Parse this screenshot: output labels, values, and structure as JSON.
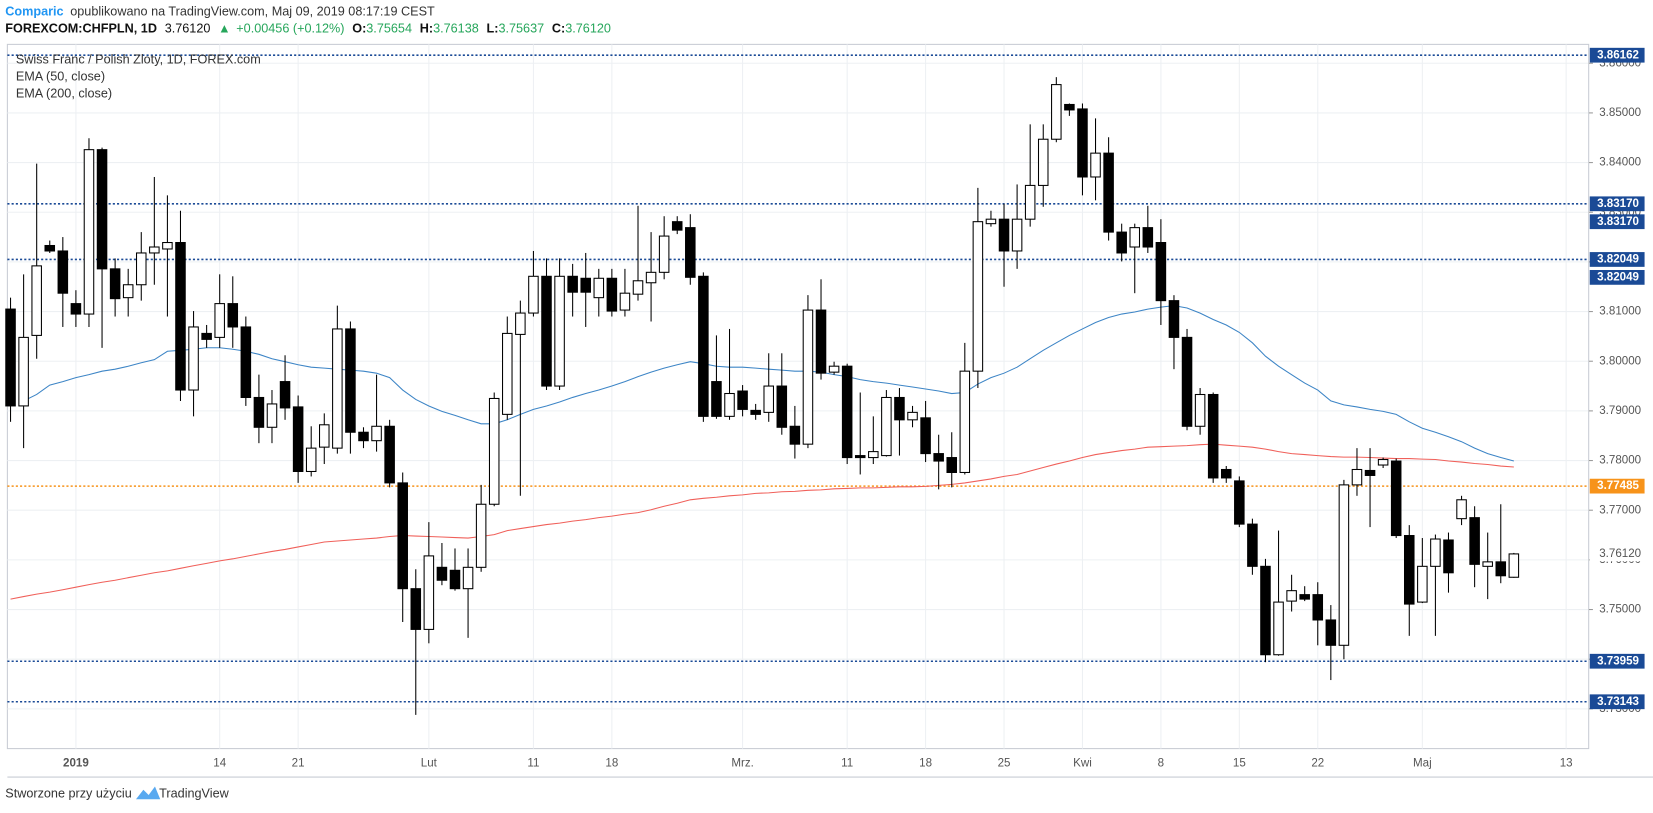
{
  "header": {
    "author": "Comparic",
    "published": "opublikowano na TradingView.com, Maj 09, 2019 08:17:19 CEST",
    "symbol": "FOREXCOM:CHFPLN, 1D",
    "price": "3.76120",
    "arrow": "▲",
    "change": "+0.00456 (+0.12%)",
    "ohlc": [
      {
        "key": "O:",
        "value": "3.75654"
      },
      {
        "key": "H:",
        "value": "3.76138"
      },
      {
        "key": "L:",
        "value": "3.75637"
      },
      {
        "key": "C:",
        "value": "3.76120"
      }
    ]
  },
  "chart_data": {
    "type": "candlestick",
    "title": "Swiss Franc / Polish Zloty, 1D, FOREX.com",
    "categories": [
      null,
      null,
      null,
      null,
      null,
      "2019",
      null,
      null,
      null,
      null,
      null,
      null,
      null,
      null,
      null,
      null,
      "14",
      null,
      null,
      null,
      null,
      null,
      "21",
      null,
      null,
      null,
      null,
      null,
      null,
      null,
      null,
      null,
      "Lut",
      null,
      null,
      null,
      null,
      null,
      null,
      null,
      "11",
      null,
      null,
      null,
      null,
      null,
      "18",
      null,
      null,
      null,
      null,
      null,
      null,
      null,
      null,
      null,
      "Mrz.",
      null,
      null,
      null,
      null,
      null,
      null,
      null,
      "11",
      null,
      null,
      null,
      null,
      null,
      "18",
      null,
      null,
      null,
      null,
      null,
      "25",
      null,
      null,
      null,
      null,
      null,
      "Kwi",
      null,
      null,
      null,
      null,
      null,
      "8",
      null,
      null,
      null,
      null,
      null,
      "15",
      null,
      null,
      null,
      null,
      null,
      "22",
      null,
      null,
      null,
      null,
      null,
      null,
      null,
      "Maj",
      null,
      null,
      null,
      null,
      null,
      null,
      null,
      null,
      null,
      null,
      "13"
    ],
    "open": [
      3.8105,
      3.791,
      3.8052,
      3.8233,
      3.8222,
      3.8116,
      3.8095,
      3.8426,
      3.8186,
      3.8128,
      3.8154,
      3.8218,
      3.8226,
      3.8239,
      3.7942,
      3.8056,
      3.8048,
      3.8116,
      3.8069,
      3.7927,
      3.7867,
      3.7959,
      3.7908,
      3.7778,
      3.7827,
      3.7825,
      3.8065,
      3.7857,
      3.784,
      3.7869,
      3.7755,
      3.7542,
      3.746,
      3.7585,
      3.7579,
      3.7542,
      3.7585,
      3.7712,
      3.7893,
      3.8054,
      3.8097,
      3.8171,
      3.795,
      3.8171,
      3.8167,
      3.8128,
      3.8167,
      3.8103,
      3.8135,
      3.8158,
      3.8179,
      3.8281,
      3.8269,
      3.8171,
      3.7959,
      3.7889,
      3.794,
      3.7901,
      3.7897,
      3.795,
      3.7869,
      3.7833,
      3.8103,
      3.7978,
      3.799,
      3.781,
      3.7806,
      3.781,
      3.7927,
      3.7882,
      3.7886,
      3.7814,
      3.7806,
      3.7776,
      3.798,
      3.8277,
      3.8286,
      3.8222,
      3.8286,
      3.8354,
      3.8447,
      3.8517,
      3.8508,
      3.8371,
      3.8419,
      3.826,
      3.823,
      3.8269,
      3.8239,
      3.8122,
      3.8048,
      3.7869,
      3.7933,
      3.7782,
      3.7759,
      3.7672,
      3.7587,
      3.7409,
      3.7517,
      3.753,
      3.753,
      3.7479,
      3.7428,
      3.7751,
      3.778,
      3.7791,
      3.7799,
      3.7649,
      3.7515,
      3.7587,
      3.764,
      3.7683,
      3.7685,
      3.7587,
      3.7596,
      3.7565,
      null,
      null,
      null,
      null
    ],
    "high": [
      3.8128,
      3.8175,
      3.8398,
      3.8243,
      3.825,
      3.8143,
      3.8449,
      3.843,
      3.8207,
      3.8186,
      3.826,
      3.8371,
      3.8334,
      3.8303,
      3.8101,
      3.8073,
      3.8175,
      3.8171,
      3.809,
      3.7973,
      3.7942,
      3.8012,
      3.7931,
      3.7869,
      3.7895,
      3.8112,
      3.808,
      3.7867,
      3.7973,
      3.7882,
      3.7776,
      3.7581,
      3.7676,
      3.7634,
      3.7623,
      3.7623,
      3.7751,
      3.7937,
      3.809,
      3.8122,
      3.8222,
      3.8207,
      3.8207,
      3.8196,
      3.8218,
      3.8186,
      3.8186,
      3.8186,
      3.8313,
      3.826,
      3.8292,
      3.8292,
      3.8296,
      3.8179,
      3.8052,
      3.8065,
      3.7952,
      3.7914,
      3.8016,
      3.8016,
      3.791,
      3.8133,
      3.8165,
      3.7999,
      3.7995,
      3.7937,
      3.7889,
      3.7942,
      3.7946,
      3.791,
      3.792,
      3.7852,
      3.7857,
      3.8037,
      3.8349,
      3.8303,
      3.8317,
      3.8356,
      3.8477,
      3.8477,
      3.8572,
      3.8519,
      3.8519,
      3.8489,
      3.8451,
      3.8277,
      3.8277,
      3.8313,
      3.8286,
      3.8133,
      3.8065,
      3.7946,
      3.7937,
      3.7789,
      3.7768,
      3.7683,
      3.7602,
      3.7659,
      3.757,
      3.7547,
      3.7555,
      3.7509,
      3.7761,
      3.7825,
      3.7825,
      3.7806,
      3.7804,
      3.767,
      3.7644,
      3.7651,
      3.7655,
      3.7729,
      3.7708,
      3.7655,
      3.7712,
      3.7614,
      null,
      null,
      null,
      null
    ],
    "low": [
      3.7878,
      3.7825,
      3.8005,
      3.8218,
      3.8069,
      3.8069,
      3.8069,
      3.8027,
      3.809,
      3.809,
      3.8122,
      3.8154,
      3.809,
      3.792,
      3.7889,
      3.8027,
      3.8027,
      3.8027,
      3.791,
      3.7835,
      3.7835,
      3.7882,
      3.7755,
      3.7768,
      3.7793,
      3.7814,
      3.7814,
      3.7825,
      3.7818,
      3.7746,
      3.7475,
      3.7288,
      3.7432,
      3.7549,
      3.7538,
      3.7443,
      3.7576,
      3.7708,
      3.7882,
      3.7729,
      3.809,
      3.7942,
      3.7942,
      3.809,
      3.8069,
      3.809,
      3.809,
      3.809,
      3.8122,
      3.808,
      3.8165,
      3.8256,
      3.8154,
      3.7878,
      3.7884,
      3.7882,
      3.7889,
      3.7882,
      3.7878,
      3.7852,
      3.7804,
      3.7825,
      3.7963,
      3.7973,
      3.7793,
      3.7772,
      3.7793,
      3.7808,
      3.781,
      3.7867,
      3.7797,
      3.7742,
      3.7746,
      3.7772,
      3.7946,
      3.8271,
      3.815,
      3.8186,
      3.8271,
      3.8311,
      3.8441,
      3.8494,
      3.8334,
      3.8324,
      3.8243,
      3.8201,
      3.8137,
      3.8218,
      3.8073,
      3.7984,
      3.7861,
      3.7852,
      3.7755,
      3.7755,
      3.7666,
      3.757,
      3.7394,
      3.7407,
      3.7496,
      3.7517,
      3.7428,
      3.7358,
      3.74,
      3.7729,
      3.7666,
      3.7785,
      3.7644,
      3.7447,
      3.7513,
      3.7447,
      3.7534,
      3.767,
      3.7545,
      3.7521,
      3.7553,
      3.7564,
      null,
      null,
      null,
      null
    ],
    "close": [
      3.791,
      3.8048,
      3.8192,
      3.8222,
      3.8137,
      3.8095,
      3.8426,
      3.8186,
      3.8126,
      3.8154,
      3.8218,
      3.823,
      3.8239,
      3.7942,
      3.8069,
      3.8044,
      3.8116,
      3.8069,
      3.7927,
      3.7867,
      3.7914,
      3.7906,
      3.7778,
      3.7825,
      3.7872,
      3.8065,
      3.7857,
      3.784,
      3.7869,
      3.7755,
      3.7542,
      3.746,
      3.7608,
      3.7559,
      3.7542,
      3.7585,
      3.7712,
      3.7925,
      3.8056,
      3.8097,
      3.8171,
      3.795,
      3.8171,
      3.8139,
      3.8139,
      3.8167,
      3.8101,
      3.8137,
      3.8162,
      3.8179,
      3.8252,
      3.8264,
      3.8169,
      3.7889,
      3.7889,
      3.7935,
      3.7903,
      3.7893,
      3.795,
      3.7867,
      3.7833,
      3.8103,
      3.7976,
      3.799,
      3.7806,
      3.7806,
      3.7818,
      3.7927,
      3.7882,
      3.7897,
      3.7814,
      3.7799,
      3.7776,
      3.798,
      3.8281,
      3.8286,
      3.8222,
      3.8286,
      3.8354,
      3.8447,
      3.8557,
      3.8506,
      3.8371,
      3.8419,
      3.826,
      3.8218,
      3.8269,
      3.823,
      3.8122,
      3.8048,
      3.7869,
      3.7933,
      3.7765,
      3.7765,
      3.7672,
      3.7587,
      3.7409,
      3.7515,
      3.7538,
      3.7521,
      3.7479,
      3.7428,
      3.7751,
      3.7782,
      3.777,
      3.7802,
      3.7649,
      3.7511,
      3.7587,
      3.7642,
      3.7574,
      3.7721,
      3.7591,
      3.7596,
      3.7568,
      3.7612,
      null,
      null,
      null,
      null
    ],
    "up_color": "#ffffff",
    "down_color": "#000000",
    "wick_color": "#000000",
    "series": [
      {
        "name": "EMA (50, close)",
        "color": "#3d85c6",
        "values": [
          null,
          3.792,
          3.7933,
          3.7952,
          3.7959,
          3.7967,
          3.7973,
          3.798,
          3.7984,
          3.799,
          3.7997,
          3.8003,
          3.802,
          3.8022,
          3.8024,
          3.8027,
          3.8027,
          3.8024,
          3.802,
          3.8014,
          3.8005,
          3.7999,
          3.7993,
          3.7988,
          3.7986,
          3.7984,
          3.7982,
          3.798,
          3.7976,
          3.7967,
          3.7942,
          3.7923,
          3.791,
          3.7899,
          3.7891,
          3.7882,
          3.7874,
          3.7874,
          3.7882,
          3.7893,
          3.7903,
          3.791,
          3.7918,
          3.7927,
          3.7935,
          3.7942,
          3.795,
          3.7959,
          3.7969,
          3.7978,
          3.7986,
          3.7993,
          3.7999,
          3.7995,
          3.799,
          3.7988,
          3.7988,
          3.7986,
          3.7984,
          3.7982,
          3.798,
          3.798,
          3.7978,
          3.7973,
          3.7969,
          3.7963,
          3.7959,
          3.7956,
          3.7952,
          3.7948,
          3.7944,
          3.794,
          3.7935,
          3.7937,
          3.7954,
          3.7967,
          3.7976,
          3.7988,
          3.8005,
          3.8022,
          3.8037,
          3.8052,
          3.8065,
          3.8078,
          3.8088,
          3.8095,
          3.8099,
          3.8105,
          3.8109,
          3.8112,
          3.8107,
          3.8097,
          3.8084,
          3.8073,
          3.8058,
          3.8037,
          3.801,
          3.799,
          3.7973,
          3.7956,
          3.7942,
          3.792,
          3.7912,
          3.7908,
          3.7903,
          3.7899,
          3.7893,
          3.7878,
          3.7865,
          3.7857,
          3.7848,
          3.7838,
          3.7825,
          3.7814,
          3.7806,
          3.7799,
          null,
          null,
          null,
          null
        ]
      },
      {
        "name": "EMA (200, close)",
        "color": "#f0605a",
        "values": [
          3.7521,
          3.7526,
          3.7531,
          3.7535,
          3.754,
          3.7545,
          3.755,
          3.7555,
          3.7559,
          3.7564,
          3.7569,
          3.7574,
          3.7578,
          3.7583,
          3.7588,
          3.7593,
          3.7598,
          3.7602,
          3.7607,
          3.7612,
          3.7617,
          3.7621,
          3.7626,
          3.7631,
          3.7636,
          3.7638,
          3.764,
          3.7642,
          3.7644,
          3.7647,
          3.7649,
          3.7648,
          3.7647,
          3.7646,
          3.7645,
          3.7644,
          3.7647,
          3.7651,
          3.7659,
          3.7663,
          3.7667,
          3.7671,
          3.7674,
          3.7678,
          3.7681,
          3.7685,
          3.7688,
          3.7692,
          3.7695,
          3.7701,
          3.7708,
          3.7714,
          3.7721,
          3.7724,
          3.7726,
          3.7729,
          3.7731,
          3.7734,
          3.7735,
          3.7737,
          3.7738,
          3.774,
          3.7741,
          3.7743,
          3.7744,
          3.7745,
          3.7745,
          3.7746,
          3.7747,
          3.7747,
          3.7748,
          3.775,
          3.7752,
          3.7755,
          3.7759,
          3.7763,
          3.7768,
          3.7772,
          3.7779,
          3.7786,
          3.7793,
          3.7799,
          3.7806,
          3.7812,
          3.7816,
          3.782,
          3.7823,
          3.7827,
          3.7828,
          3.7829,
          3.783,
          3.7832,
          3.7833,
          3.7831,
          3.7829,
          3.7827,
          3.7823,
          3.7818,
          3.7814,
          3.7812,
          3.781,
          3.7808,
          3.7807,
          3.7807,
          3.7806,
          3.7805,
          3.7804,
          3.7804,
          3.7803,
          3.7802,
          3.7799,
          3.7797,
          3.7794,
          3.7792,
          3.7789,
          3.7787,
          null,
          null,
          null,
          null
        ]
      }
    ],
    "ylim": [
      3.722,
      3.8638
    ],
    "yticks": [
      {
        "value": 3.73,
        "label": "3.73000"
      },
      {
        "value": 3.74,
        "label": "3.74000"
      },
      {
        "value": 3.75,
        "label": "3.75000"
      },
      {
        "value": 3.76,
        "label": "3.76000"
      },
      {
        "value": 3.77,
        "label": "3.77000"
      },
      {
        "value": 3.78,
        "label": "3.78000"
      },
      {
        "value": 3.79,
        "label": "3.79000"
      },
      {
        "value": 3.8,
        "label": "3.80000"
      },
      {
        "value": 3.81,
        "label": "3.81000"
      },
      {
        "value": 3.82,
        "label": "3.82000"
      },
      {
        "value": 3.83,
        "label": "3.83000"
      },
      {
        "value": 3.84,
        "label": "3.84000"
      },
      {
        "value": 3.85,
        "label": "3.85000"
      },
      {
        "value": 3.86,
        "label": "3.86000"
      }
    ],
    "grid": true,
    "levels": [
      {
        "value": 3.86162,
        "labels": [
          "3.86162"
        ],
        "color": "#1a4a96"
      },
      {
        "value": 3.8317,
        "labels": [
          "3.83170",
          "3.83170"
        ],
        "color": "#1a4a96"
      },
      {
        "value": 3.82049,
        "labels": [
          "3.82049",
          "3.82049"
        ],
        "color": "#1a4a96"
      },
      {
        "value": 3.77485,
        "labels": [
          "3.77485"
        ],
        "color": "#f7931a"
      },
      {
        "value": 3.73959,
        "labels": [
          "3.73959"
        ],
        "color": "#1a4a96"
      },
      {
        "value": 3.73143,
        "labels": [
          "3.73143"
        ],
        "color": "#1a4a96"
      }
    ],
    "last_price": {
      "value": 3.7612,
      "label": "3.76120"
    }
  },
  "footer": {
    "text": "Stworzone przy użyciu",
    "brand": "TradingView"
  }
}
